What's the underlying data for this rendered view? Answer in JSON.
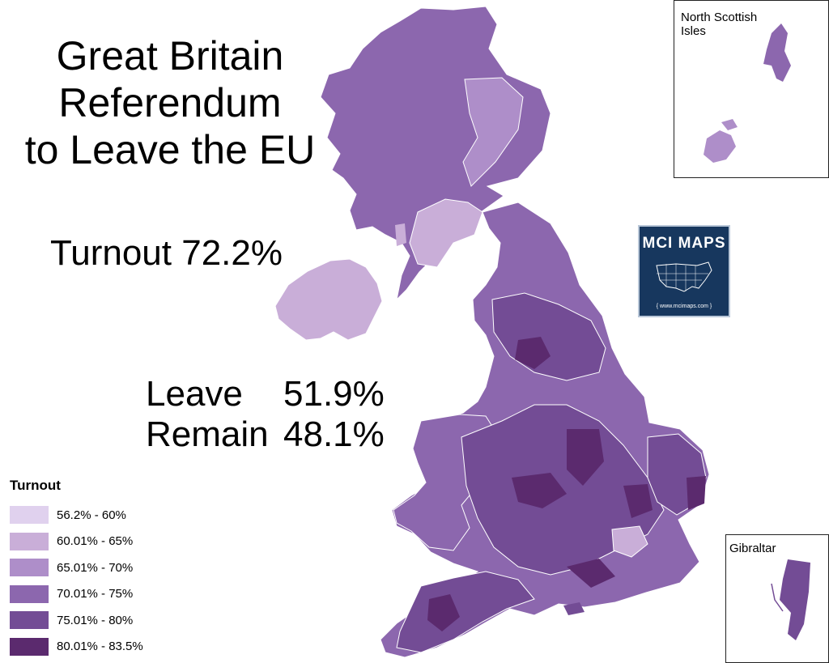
{
  "title": {
    "line1": "Great Britain",
    "line2": "Referendum",
    "line3": "to Leave the EU"
  },
  "turnout": "Turnout 72.2%",
  "results": {
    "leave_label": "Leave",
    "leave_value": "51.9%",
    "remain_label": "Remain",
    "remain_value": "48.1%"
  },
  "insets": {
    "isles_title": "North Scottish Isles",
    "gibraltar_title": "Gibraltar"
  },
  "badge": {
    "logo": "MCI MAPS",
    "url": "{ www.mcimaps.com }"
  },
  "legend": {
    "title": "Turnout",
    "items": [
      {
        "label": "56.2% - 60%",
        "color": "#e0d1ee"
      },
      {
        "label": "60.01% - 65%",
        "color": "#c9aed8"
      },
      {
        "label": "65.01% - 70%",
        "color": "#ae8ec9"
      },
      {
        "label": "70.01% - 75%",
        "color": "#8c67ae"
      },
      {
        "label": "75.01% - 80%",
        "color": "#734c95"
      },
      {
        "label": "80.01% - 83.5%",
        "color": "#5b2a6e"
      }
    ]
  }
}
